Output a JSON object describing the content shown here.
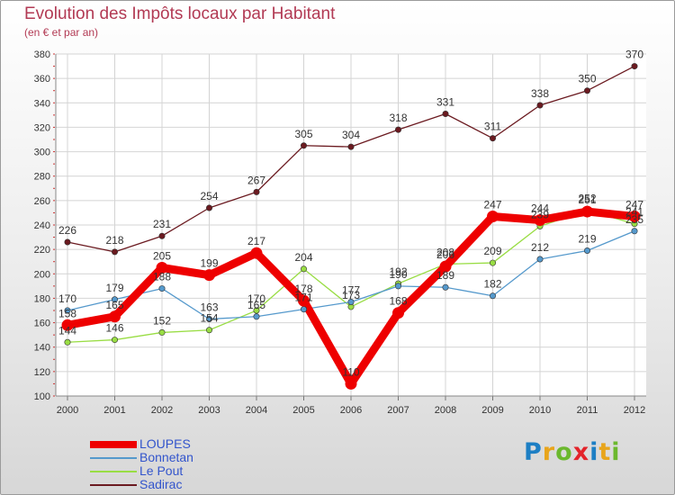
{
  "chart_data": {
    "type": "line",
    "title": "Evolution des Impôts locaux par Habitant",
    "subtitle": "(en € et par an)",
    "categories": [
      "2000",
      "2001",
      "2002",
      "2003",
      "2004",
      "2005",
      "2006",
      "2007",
      "2008",
      "2009",
      "2010",
      "2011",
      "2012"
    ],
    "ylim": [
      100,
      380
    ],
    "yticks": [
      100,
      120,
      140,
      160,
      180,
      200,
      220,
      240,
      260,
      280,
      300,
      320,
      340,
      360,
      380
    ],
    "grid": true,
    "legend_position": "bottom-left",
    "series": [
      {
        "name": "Sadirac",
        "color": "#6b1a20",
        "values": [
          226,
          218,
          231,
          254,
          267,
          305,
          304,
          318,
          331,
          311,
          338,
          350,
          370
        ]
      },
      {
        "name": "Le Pout",
        "color": "#99dd44",
        "values": [
          144,
          146,
          152,
          154,
          170,
          204,
          173,
          192,
          208,
          209,
          239,
          252,
          241
        ]
      },
      {
        "name": "Bonnetan",
        "color": "#5599cc",
        "values": [
          170,
          179,
          188,
          163,
          165,
          171,
          177,
          190,
          189,
          182,
          212,
          219,
          235
        ]
      },
      {
        "name": "LOUPES",
        "color": "#ee0000",
        "values": [
          158,
          165,
          205,
          199,
          217,
          178,
          110,
          168,
          206,
          247,
          244,
          251,
          247
        ]
      }
    ],
    "legend_order": [
      "LOUPES",
      "Bonnetan",
      "Le Pout",
      "Sadirac"
    ]
  },
  "logo": {
    "letters": [
      "P",
      "r",
      "o",
      "x",
      "i",
      "t",
      "i"
    ],
    "colors": [
      "#1d7fc4",
      "#e8a51c",
      "#6bb82e",
      "#e3242b",
      "#1d7fc4",
      "#e8a51c",
      "#6bb82e"
    ]
  }
}
